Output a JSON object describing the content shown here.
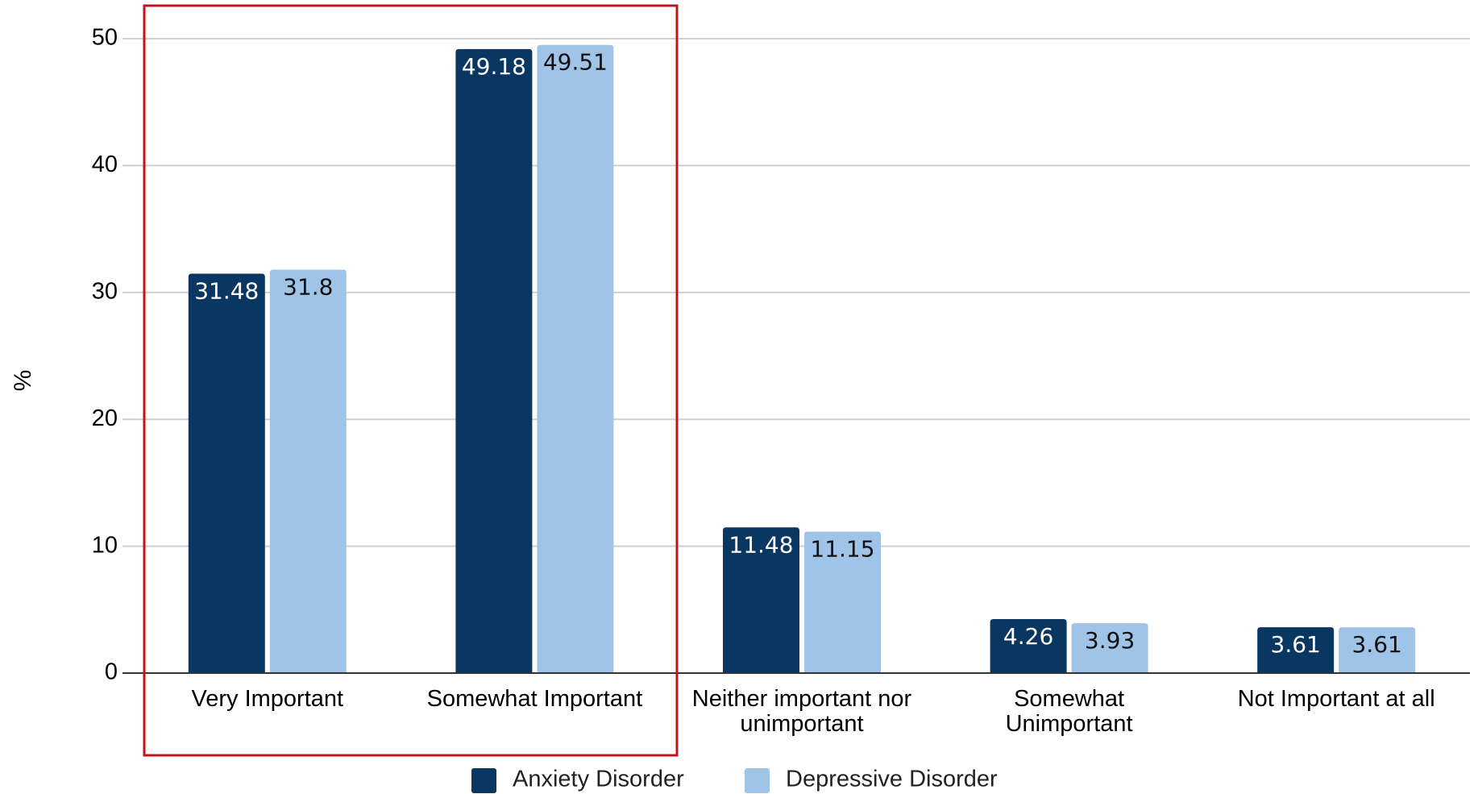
{
  "chart_data": {
    "type": "bar",
    "title": "",
    "xlabel": "",
    "ylabel": "%",
    "ylim": [
      0,
      52
    ],
    "yticks": [
      0,
      10,
      20,
      30,
      40,
      50
    ],
    "grid": true,
    "legend_position": "bottom-center",
    "categories": [
      "Very Important",
      "Somewhat Important",
      "Neither important nor unimportant",
      "Somewhat Unimportant",
      "Not Important at all"
    ],
    "category_label_lines": [
      [
        "Very Important"
      ],
      [
        "Somewhat Important"
      ],
      [
        "Neither important nor",
        "unimportant"
      ],
      [
        "Somewhat",
        "Unimportant"
      ],
      [
        "Not Important at all"
      ]
    ],
    "series": [
      {
        "name": "Anxiety Disorder",
        "color": "#0a3761",
        "label_color": "#ffffff",
        "values": [
          31.48,
          49.18,
          11.48,
          4.26,
          3.61
        ],
        "labels": [
          "31.48",
          "49.18",
          "11.48",
          "4.26",
          "3.61"
        ]
      },
      {
        "name": "Depressive Disorder",
        "color": "#a0c4e8",
        "label_color": "#111111",
        "values": [
          31.8,
          49.51,
          11.15,
          3.93,
          3.61
        ],
        "labels": [
          "31.8",
          "49.51",
          "11.15",
          "3.93",
          "3.61"
        ]
      }
    ],
    "highlight_box_color": "#c0151e"
  }
}
